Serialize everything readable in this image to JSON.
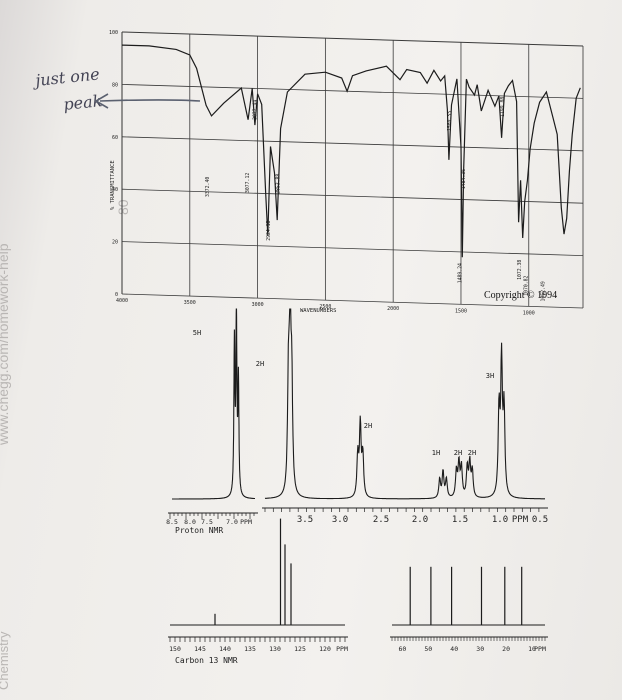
{
  "handwritten_note": {
    "line1": "just one",
    "line2": "peak"
  },
  "copyright": "Copyright © 1994",
  "chart_data": [
    {
      "type": "line",
      "name": "IR spectrum",
      "ylabel": "% TRANSMITTANCE",
      "xlabel": "WAVENUMBERS",
      "x_ticks": [
        "4000",
        "3500",
        "3000",
        "2500",
        "2000",
        "1500",
        "1000"
      ],
      "y_ticks": [
        "100",
        "80",
        "60",
        "40",
        "20",
        "0"
      ],
      "xlim": [
        4000,
        600
      ],
      "ylim": [
        0,
        100
      ],
      "peak_labels": [
        "3372.40",
        "3077.12",
        "3022.44",
        "2924.18",
        "2853.88",
        "1589.55",
        "1484.36",
        "1489.24",
        "1199.88",
        "1072.38",
        "1070.82",
        "1062.49"
      ],
      "x": [
        4000,
        3800,
        3600,
        3500,
        3450,
        3380,
        3340,
        3250,
        3120,
        3070,
        3040,
        3020,
        3000,
        2970,
        2940,
        2925,
        2905,
        2875,
        2855,
        2830,
        2780,
        2650,
        2500,
        2380,
        2340,
        2300,
        2200,
        2050,
        1950,
        1900,
        1800,
        1750,
        1700,
        1650,
        1620,
        1600,
        1589,
        1570,
        1530,
        1500,
        1490,
        1480,
        1460,
        1440,
        1400,
        1380,
        1350,
        1300,
        1250,
        1220,
        1200,
        1180,
        1150,
        1120,
        1090,
        1075,
        1060,
        1045,
        1030,
        1010,
        990,
        960,
        920,
        870,
        820,
        790,
        760,
        740,
        720,
        700,
        680,
        650,
        620
      ],
      "y": [
        95,
        95,
        94,
        92,
        87,
        73,
        69,
        74,
        80,
        68,
        80,
        66,
        78,
        74,
        40,
        24,
        58,
        48,
        30,
        65,
        79,
        86,
        87,
        85,
        80,
        86,
        88,
        90,
        85,
        89,
        88,
        84,
        89,
        85,
        87,
        74,
        55,
        76,
        86,
        60,
        18,
        52,
        86,
        83,
        80,
        84,
        74,
        82,
        76,
        80,
        64,
        81,
        84,
        86,
        78,
        32,
        48,
        26,
        40,
        48,
        60,
        70,
        78,
        82,
        72,
        66,
        38,
        28,
        34,
        52,
        66,
        80,
        84
      ]
    },
    {
      "type": "line",
      "name": "Proton NMR",
      "title": "Proton NMR",
      "x_ticks": [
        "8.5",
        "8.0",
        "7.5",
        "7.0",
        "PPM",
        "3.5",
        "3.0",
        "2.5",
        "2.0",
        "1.5",
        "1.0",
        "PPM",
        "0.5"
      ],
      "x_tick_values": [
        8.5,
        8.0,
        7.5,
        7.0,
        null,
        3.5,
        3.0,
        2.5,
        2.0,
        1.5,
        1.0,
        null,
        0.5
      ],
      "integrations": [
        {
          "label": "5H",
          "ppm": 7.2
        },
        {
          "label": "2H",
          "ppm": 3.45
        },
        {
          "label": "2H",
          "ppm": 2.6
        },
        {
          "label": "1H",
          "ppm": 1.62
        },
        {
          "label": "2H",
          "ppm": 1.42
        },
        {
          "label": "2H",
          "ppm": 1.28
        },
        {
          "label": "3H",
          "ppm": 0.92
        }
      ],
      "peaks": [
        {
          "ppm": 7.26,
          "height": 0.8
        },
        {
          "ppm": 7.22,
          "height": 0.95
        },
        {
          "ppm": 7.18,
          "height": 0.6
        },
        {
          "ppm": 3.47,
          "height": 0.55
        },
        {
          "ppm": 3.45,
          "height": 0.9
        },
        {
          "ppm": 3.43,
          "height": 0.55
        },
        {
          "ppm": 2.64,
          "height": 0.22
        },
        {
          "ppm": 2.61,
          "height": 0.38
        },
        {
          "ppm": 2.58,
          "height": 0.22
        },
        {
          "ppm": 1.66,
          "height": 0.1
        },
        {
          "ppm": 1.62,
          "height": 0.14
        },
        {
          "ppm": 1.58,
          "height": 0.1
        },
        {
          "ppm": 1.46,
          "height": 0.14
        },
        {
          "ppm": 1.43,
          "height": 0.18
        },
        {
          "ppm": 1.4,
          "height": 0.16
        },
        {
          "ppm": 1.33,
          "height": 0.16
        },
        {
          "ppm": 1.3,
          "height": 0.18
        },
        {
          "ppm": 1.27,
          "height": 0.14
        },
        {
          "ppm": 0.95,
          "height": 0.45
        },
        {
          "ppm": 0.92,
          "height": 0.7
        },
        {
          "ppm": 0.89,
          "height": 0.45
        }
      ]
    },
    {
      "type": "bar",
      "name": "Carbon 13 NMR",
      "title": "Carbon 13 NMR",
      "x_ticks": [
        "150",
        "145",
        "140",
        "135",
        "130",
        "125",
        "120",
        "PPM",
        "60",
        "50",
        "40",
        "30",
        "20",
        "10",
        "PPM"
      ],
      "x_tick_values": [
        150,
        145,
        140,
        135,
        130,
        125,
        120,
        null,
        60,
        50,
        40,
        30,
        20,
        10,
        null
      ],
      "peaks": [
        {
          "ppm": 142.0,
          "height": 0.1
        },
        {
          "ppm": 128.9,
          "height": 0.95
        },
        {
          "ppm": 128.0,
          "height": 0.72
        },
        {
          "ppm": 126.8,
          "height": 0.55
        },
        {
          "ppm": 57.0,
          "height": 0.52
        },
        {
          "ppm": 49.0,
          "height": 0.52
        },
        {
          "ppm": 41.0,
          "height": 0.52
        },
        {
          "ppm": 29.5,
          "height": 0.52
        },
        {
          "ppm": 20.5,
          "height": 0.52
        },
        {
          "ppm": 14.0,
          "height": 0.52
        }
      ]
    }
  ]
}
